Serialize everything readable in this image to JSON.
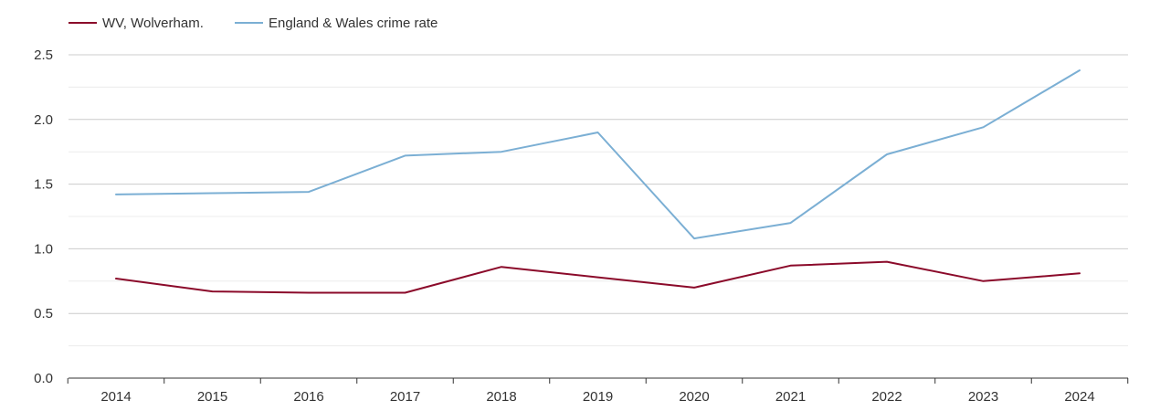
{
  "chart_data": {
    "type": "line",
    "title": "",
    "xlabel": "",
    "ylabel": "",
    "x": [
      "2014",
      "2015",
      "2016",
      "2017",
      "2018",
      "2019",
      "2020",
      "2021",
      "2022",
      "2023",
      "2024"
    ],
    "ylim": [
      0,
      2.5
    ],
    "y_ticks": [
      "0.0",
      "0.5",
      "1.0",
      "1.5",
      "2.0",
      "2.5"
    ],
    "grid": true,
    "legend_position": "top-left",
    "series": [
      {
        "name": "WV, Wolverham.",
        "color": "#8b0a2a",
        "values": [
          0.77,
          0.67,
          0.66,
          0.66,
          0.86,
          0.78,
          0.7,
          0.87,
          0.9,
          0.75,
          0.81
        ]
      },
      {
        "name": "England & Wales crime rate",
        "color": "#7bafd4",
        "values": [
          1.42,
          1.43,
          1.44,
          1.72,
          1.75,
          1.9,
          1.08,
          1.2,
          1.73,
          1.94,
          2.38
        ]
      }
    ]
  }
}
